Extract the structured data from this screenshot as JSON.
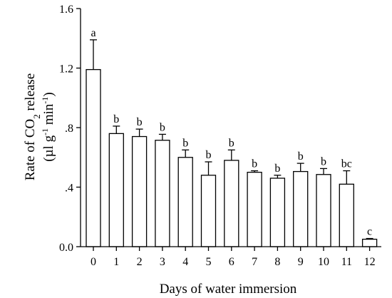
{
  "chart_data": {
    "type": "bar",
    "title": "",
    "xlabel": "Days of water immersion",
    "ylabel": {
      "line1": {
        "pre": "Rate of CO",
        "sub": "2",
        "post": " release"
      },
      "line2": {
        "pre": "(µl g",
        "sup1": "-1",
        "mid": " min",
        "sup2": "-1",
        "post": ")"
      }
    },
    "ylim": [
      0,
      1.6
    ],
    "yticks": [
      {
        "value": 0.0,
        "label": "0.0"
      },
      {
        "value": 0.4,
        "label": ".4"
      },
      {
        "value": 0.8,
        "label": ".8"
      },
      {
        "value": 1.2,
        "label": "1.2"
      },
      {
        "value": 1.6,
        "label": "1.6"
      }
    ],
    "categories": [
      "0",
      "1",
      "2",
      "3",
      "4",
      "5",
      "6",
      "7",
      "8",
      "9",
      "10",
      "11",
      "12"
    ],
    "values": [
      1.19,
      0.76,
      0.74,
      0.715,
      0.6,
      0.48,
      0.58,
      0.5,
      0.46,
      0.505,
      0.485,
      0.42,
      0.05
    ],
    "errors": [
      0.2,
      0.05,
      0.05,
      0.04,
      0.05,
      0.09,
      0.07,
      0.01,
      0.02,
      0.055,
      0.04,
      0.09,
      0.005
    ],
    "significance": [
      "a",
      "b",
      "b",
      "b",
      "b",
      "b",
      "b",
      "b",
      "b",
      "b",
      "b",
      "bc",
      "c"
    ],
    "grid": false,
    "bar_fill": "#ffffff",
    "bar_stroke": "#000000"
  }
}
